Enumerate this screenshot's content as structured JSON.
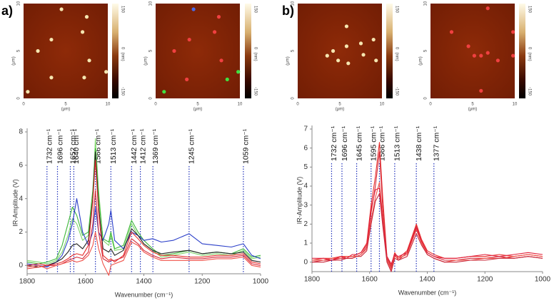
{
  "panel_labels": [
    "a)",
    "b)"
  ],
  "afm": {
    "axis_ticks": [
      "0",
      "5",
      "10"
    ],
    "axis_unit": "(μm)",
    "colorbar_ticks": [
      "150",
      "0",
      "-150"
    ],
    "colorbar_unit": "(nm)"
  },
  "chart_data": [
    {
      "type": "line",
      "y_label": "IR-Amplitude (V)",
      "x_label": "Wavenumber (cm⁻¹)",
      "xlim": [
        1800,
        1000
      ],
      "xticks": [
        1800,
        1600,
        1400,
        1200,
        1000
      ],
      "ylim": [
        -0.5,
        8
      ],
      "yticks": [
        0,
        2,
        4,
        6,
        8
      ],
      "x": [
        1800,
        1760,
        1732,
        1700,
        1680,
        1660,
        1645,
        1630,
        1610,
        1590,
        1575,
        1566,
        1555,
        1540,
        1520,
        1513,
        1500,
        1470,
        1442,
        1420,
        1400,
        1370,
        1340,
        1300,
        1245,
        1200,
        1150,
        1100,
        1059,
        1030,
        1000
      ],
      "series": [
        {
          "color": "#7fd66a",
          "values": [
            0.3,
            0.2,
            0.1,
            0.3,
            0.8,
            1.8,
            2.8,
            2.5,
            1.5,
            1.8,
            4,
            7.6,
            4.5,
            1.5,
            1.2,
            1.8,
            0.9,
            1.0,
            2.5,
            1.8,
            1.3,
            0.9,
            0.5,
            0.6,
            0.8,
            0.6,
            0.7,
            0.6,
            0.9,
            0.4,
            0.5
          ]
        },
        {
          "color": "#3fb83a",
          "values": [
            0.2,
            0.1,
            0.2,
            0.4,
            1.2,
            2.5,
            3.5,
            3.0,
            1.8,
            2.0,
            4.5,
            7.0,
            4.0,
            1.6,
            1.4,
            2.0,
            1.0,
            1.2,
            2.7,
            2.0,
            1.5,
            1.0,
            0.6,
            0.7,
            0.9,
            0.7,
            0.8,
            0.7,
            1.0,
            0.5,
            0.6
          ]
        },
        {
          "color": "#2b3fc9",
          "values": [
            0.1,
            0.0,
            -0.1,
            0.2,
            0.6,
            1.5,
            2.5,
            4.0,
            2.0,
            1.2,
            2.0,
            3.5,
            2.0,
            1.5,
            2.5,
            3.3,
            1.5,
            1.0,
            2.0,
            1.8,
            1.5,
            1.6,
            1.4,
            1.5,
            1.9,
            1.3,
            1.2,
            1.1,
            1.3,
            0.6,
            0.4
          ]
        },
        {
          "color": "#222222",
          "values": [
            0.0,
            -0.1,
            0.0,
            0.2,
            0.4,
            0.8,
            1.2,
            1.3,
            1.0,
            1.5,
            4.0,
            6.8,
            3.5,
            1.0,
            0.8,
            1.0,
            0.6,
            0.9,
            2.2,
            1.8,
            1.3,
            0.9,
            0.7,
            0.8,
            0.9,
            0.7,
            0.8,
            0.7,
            0.8,
            0.3,
            0.2
          ]
        },
        {
          "color": "#e8312f",
          "values": [
            -0.2,
            -0.1,
            0.0,
            0.1,
            0.2,
            0.4,
            0.6,
            0.7,
            0.6,
            1.2,
            3.8,
            6.3,
            3.2,
            0.6,
            0.3,
            0.4,
            0.2,
            0.6,
            2.0,
            1.6,
            1.2,
            0.8,
            0.6,
            0.6,
            0.5,
            0.5,
            0.6,
            0.6,
            0.7,
            0.2,
            0.1
          ]
        },
        {
          "color": "#d42a3a",
          "values": [
            0.0,
            0.1,
            0.0,
            0.0,
            0.1,
            0.3,
            0.4,
            0.5,
            0.4,
            0.8,
            2.5,
            4.5,
            2.0,
            0.4,
            0.2,
            0.3,
            0.3,
            0.5,
            1.6,
            1.3,
            0.9,
            0.6,
            0.4,
            0.5,
            0.4,
            0.4,
            0.5,
            0.5,
            0.6,
            0.1,
            0.0
          ]
        },
        {
          "color": "#f0524a",
          "values": [
            -0.1,
            0.0,
            -0.2,
            0.0,
            0.1,
            0.2,
            0.3,
            0.2,
            0.3,
            0.6,
            1.2,
            2.0,
            1.0,
            0.1,
            -0.6,
            0.0,
            0.1,
            0.3,
            1.4,
            1.2,
            0.8,
            0.5,
            0.3,
            0.3,
            0.3,
            0.3,
            0.4,
            0.4,
            0.5,
            0.0,
            -0.1
          ]
        }
      ],
      "annotations": [
        {
          "x": 1732,
          "label": "1732 cm⁻¹"
        },
        {
          "x": 1696,
          "label": "1696 cm⁻¹"
        },
        {
          "x": 1652,
          "label": "1652 cm⁻¹"
        },
        {
          "x": 1640,
          "label": "1640 cm⁻¹"
        },
        {
          "x": 1566,
          "label": "1566 cm⁻¹"
        },
        {
          "x": 1513,
          "label": "1513 cm⁻¹"
        },
        {
          "x": 1442,
          "label": "1442 cm⁻¹"
        },
        {
          "x": 1412,
          "label": "1412 cm⁻¹"
        },
        {
          "x": 1369,
          "label": "1369 cm⁻¹"
        },
        {
          "x": 1245,
          "label": "1245 cm⁻¹"
        },
        {
          "x": 1059,
          "label": "1059 cm⁻¹"
        }
      ]
    },
    {
      "type": "line",
      "y_label": "IR-Amplitude (V)",
      "x_label": "Wavenumber (cm⁻¹)",
      "xlim": [
        1800,
        1000
      ],
      "xticks": [
        1800,
        1600,
        1400,
        1200,
        1000
      ],
      "ylim": [
        -0.5,
        7
      ],
      "yticks": [
        0,
        1,
        2,
        3,
        4,
        5,
        6,
        7
      ],
      "x": [
        1800,
        1760,
        1732,
        1700,
        1680,
        1660,
        1645,
        1630,
        1610,
        1595,
        1580,
        1566,
        1555,
        1540,
        1525,
        1513,
        1500,
        1470,
        1438,
        1420,
        1400,
        1377,
        1340,
        1300,
        1250,
        1200,
        1150,
        1100,
        1050,
        1000
      ],
      "series": [
        {
          "color": "#e8312f",
          "values": [
            0.1,
            0.2,
            0.2,
            0.3,
            0.3,
            0.3,
            0.4,
            0.5,
            1.0,
            3.0,
            4.5,
            6.3,
            3.5,
            0.3,
            -0.2,
            0.5,
            0.2,
            0.6,
            2.0,
            1.2,
            0.6,
            0.4,
            0.2,
            0.2,
            0.3,
            0.3,
            0.4,
            0.3,
            0.4,
            0.3
          ]
        },
        {
          "color": "#d42a3a",
          "values": [
            0.0,
            0.1,
            0.1,
            0.2,
            0.2,
            0.2,
            0.3,
            0.4,
            0.8,
            2.6,
            4.0,
            5.8,
            3.0,
            0.2,
            -0.3,
            0.4,
            0.1,
            0.5,
            1.9,
            1.1,
            0.5,
            0.3,
            0.1,
            0.1,
            0.2,
            0.2,
            0.3,
            0.2,
            0.3,
            0.2
          ]
        },
        {
          "color": "#f0524a",
          "values": [
            0.1,
            0.1,
            0.2,
            0.2,
            0.3,
            0.3,
            0.3,
            0.4,
            0.7,
            2.2,
            3.4,
            4.2,
            2.5,
            0.1,
            -0.4,
            0.3,
            0.2,
            0.4,
            1.7,
            1.0,
            0.4,
            0.2,
            0.0,
            0.1,
            0.1,
            0.2,
            0.2,
            0.3,
            0.4,
            0.3
          ]
        },
        {
          "color": "#e2203a",
          "values": [
            0.2,
            0.2,
            0.1,
            0.3,
            0.2,
            0.4,
            0.4,
            0.5,
            0.9,
            2.8,
            3.8,
            3.9,
            2.2,
            0.3,
            -0.1,
            0.4,
            0.3,
            0.5,
            1.8,
            1.1,
            0.5,
            0.3,
            0.2,
            0.2,
            0.3,
            0.4,
            0.3,
            0.4,
            0.5,
            0.4
          ]
        },
        {
          "color": "#c8283a",
          "values": [
            0.0,
            0.0,
            0.1,
            0.1,
            0.2,
            0.2,
            0.3,
            0.3,
            0.6,
            2.0,
            3.2,
            3.6,
            2.0,
            0.0,
            -0.5,
            0.2,
            0.1,
            0.3,
            1.5,
            0.9,
            0.4,
            0.2,
            0.0,
            0.0,
            0.1,
            0.1,
            0.2,
            0.2,
            0.3,
            0.2
          ]
        }
      ],
      "annotations": [
        {
          "x": 1732,
          "label": "1732 cm⁻¹"
        },
        {
          "x": 1696,
          "label": "1696 cm⁻¹"
        },
        {
          "x": 1645,
          "label": "1645 cm⁻¹"
        },
        {
          "x": 1595,
          "label": "1595 cm⁻¹"
        },
        {
          "x": 1566,
          "label": "1566 cm⁻¹"
        },
        {
          "x": 1513,
          "label": "1513 cm⁻¹"
        },
        {
          "x": 1438,
          "label": "1438 cm⁻¹"
        },
        {
          "x": 1377,
          "label": "1377 cm⁻¹"
        }
      ]
    }
  ]
}
